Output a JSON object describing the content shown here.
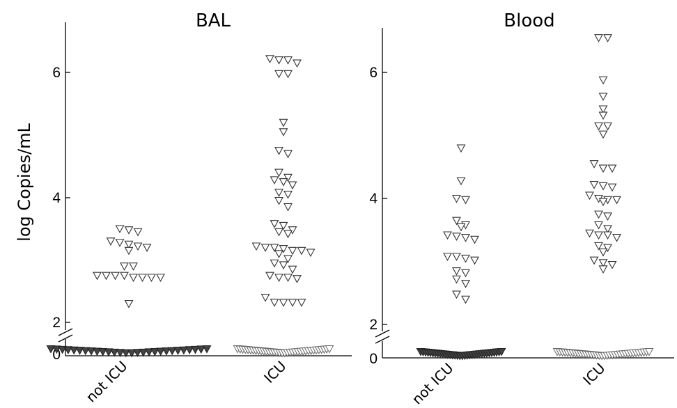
{
  "chart_data": {
    "type": "scatter",
    "ylabel": "log Copies/mL",
    "y_ticks": [
      "0",
      "2",
      "4",
      "6"
    ],
    "axis_break": true,
    "marker": "open-down-triangle",
    "panels": [
      {
        "title": "BAL",
        "categories": [
          "not ICU",
          "ICU"
        ],
        "series": [
          {
            "category": "not ICU",
            "detected_values": [
              3.5,
              3.45,
              3.48,
              3.3,
              3.28,
              3.2,
              3.25,
              3.22,
              3.15,
              2.9,
              2.9,
              2.75,
              2.75,
              2.72,
              2.72,
              2.72,
              2.72,
              2.75,
              2.75,
              2.3
            ],
            "undetected_count": 28
          },
          {
            "category": "ICU",
            "detected_values": [
              6.2,
              6.15,
              6.2,
              6.22,
              5.98,
              5.98,
              5.2,
              5.05,
              4.75,
              4.7,
              4.4,
              4.32,
              4.28,
              4.25,
              4.2,
              4.05,
              4.08,
              3.95,
              3.85,
              3.58,
              3.55,
              3.48,
              3.42,
              3.45,
              3.22,
              3.2,
              3.15,
              3.18,
              3.1,
              3.12,
              3.15,
              3.2,
              3.02,
              2.95,
              2.92,
              2.85,
              2.75,
              2.72,
              2.72,
              2.7,
              2.4,
              2.32,
              2.32,
              2.32,
              2.32
            ],
            "undetected_count": 36
          }
        ]
      },
      {
        "title": "Blood",
        "categories": [
          "not ICU",
          "ICU"
        ],
        "series": [
          {
            "category": "not ICU",
            "detected_values": [
              4.8,
              4.28,
              4.0,
              3.98,
              3.65,
              3.58,
              3.55,
              3.42,
              3.4,
              3.35,
              3.38,
              3.08,
              3.02,
              3.05,
              3.08,
              2.85,
              2.82,
              2.72,
              2.65,
              2.48,
              2.4
            ],
            "undetected_count": 34
          },
          {
            "category": "ICU",
            "detected_values": [
              6.55,
              6.55,
              5.88,
              5.62,
              5.42,
              5.32,
              5.15,
              5.15,
              5.02,
              4.55,
              4.48,
              4.48,
              4.22,
              4.2,
              4.18,
              4.05,
              4.0,
              3.98,
              3.98,
              3.95,
              3.75,
              3.72,
              3.58,
              3.52,
              3.45,
              3.42,
              3.38,
              3.42,
              3.25,
              3.22,
              3.15,
              3.02,
              2.98,
              2.95,
              2.88
            ],
            "undetected_count": 36
          }
        ]
      }
    ]
  }
}
